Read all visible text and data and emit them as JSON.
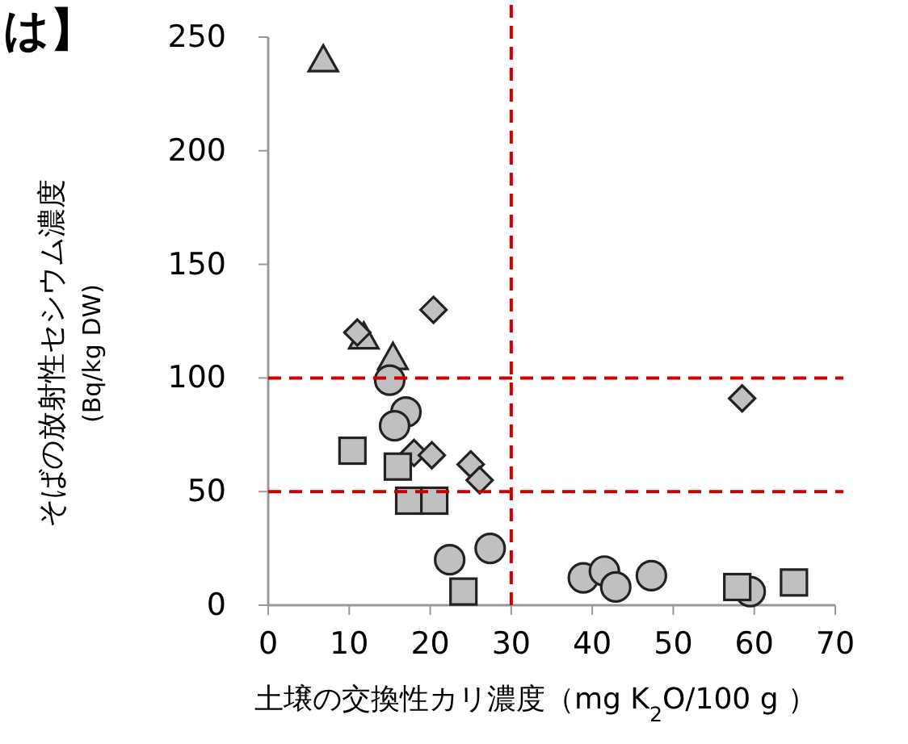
{
  "chart_data": {
    "type": "scatter",
    "annotations": [
      "は】"
    ],
    "xlabel": "土壌の交換性カリ濃度（mg K$_{2}$O/100 g ）",
    "ylabel": "そばの放射性セシウム濃度\n(Bq/kg  DW)",
    "xlim": [
      0,
      70
    ],
    "xticks": [
      0,
      10,
      20,
      30,
      40,
      50,
      60,
      70
    ],
    "ylim": [
      0,
      250
    ],
    "yticks": [
      0,
      50,
      100,
      150,
      200,
      250
    ],
    "series": [
      {
        "marker": "triangle",
        "color": "#c0c0c0",
        "x": [
          6.8,
          11.8,
          15.4
        ],
        "values": [
          240,
          118,
          109
        ]
      },
      {
        "marker": "diamond",
        "color": "#c0c0c0",
        "x": [
          11,
          20.4,
          18,
          20.2,
          25,
          26.1,
          58.5
        ],
        "values": [
          120,
          130,
          67,
          66,
          62,
          55,
          91
        ]
      },
      {
        "marker": "circle",
        "color": "#c0c0c0",
        "x": [
          15,
          17,
          15.6,
          22.4,
          27.4,
          38.9,
          41.5,
          42.9,
          47.3,
          59.5
        ],
        "values": [
          99,
          85,
          79,
          20,
          25,
          12,
          15,
          8,
          13,
          6
        ]
      },
      {
        "marker": "square",
        "color": "#c0c0c0",
        "x": [
          10.4,
          16,
          17.4,
          20.5,
          24.1,
          57.9,
          64.9
        ],
        "values": [
          68,
          61,
          46,
          46,
          6,
          8,
          10
        ]
      }
    ],
    "ref_lines": [
      {
        "axis": "x",
        "value": 30,
        "color": "#cc0000",
        "line_style": "dashed"
      },
      {
        "axis": "y",
        "value": 100,
        "color": "#cc0000",
        "line_style": "dashed"
      },
      {
        "axis": "y",
        "value": 50,
        "color": "#cc0000",
        "line_style": "dashed"
      }
    ]
  }
}
